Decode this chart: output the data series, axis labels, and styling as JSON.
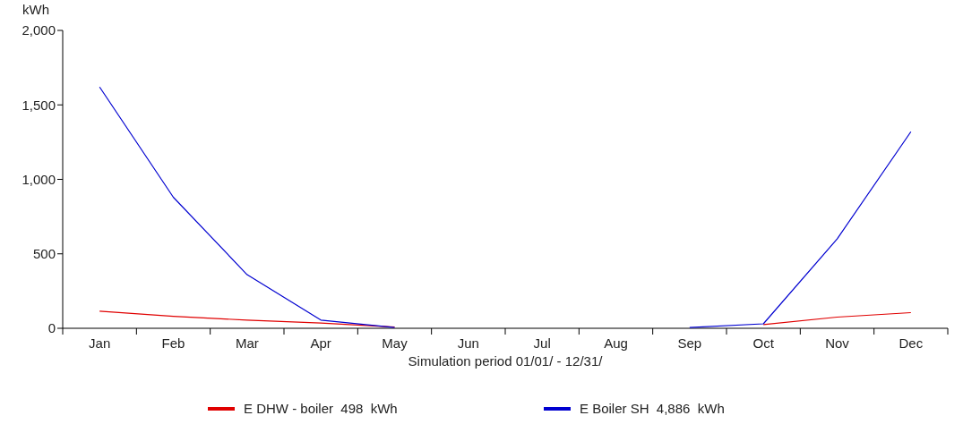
{
  "chart_data": {
    "type": "line",
    "xlabel": "Simulation period 01/01/ - 12/31/",
    "ylabel": "kWh",
    "categories": [
      "Jan",
      "Feb",
      "Mar",
      "Apr",
      "May",
      "Jun",
      "Jul",
      "Aug",
      "Sep",
      "Oct",
      "Nov",
      "Dec"
    ],
    "series": [
      {
        "name": "E DHW - boiler  498  kWh",
        "color": "#e00000",
        "values": [
          115,
          80,
          55,
          35,
          8,
          null,
          null,
          null,
          null,
          25,
          75,
          105
        ]
      },
      {
        "name": "E Boiler SH  4,886  kWh",
        "color": "#0000d0",
        "values": [
          1620,
          880,
          360,
          55,
          5,
          null,
          null,
          null,
          5,
          30,
          600,
          1320
        ]
      }
    ],
    "ylim": [
      0,
      2000
    ],
    "yticks": [
      0,
      {
        "value": 500,
        "label": "500"
      },
      {
        "value": 1000,
        "label": "1,000"
      },
      {
        "value": 1500,
        "label": "1,500"
      },
      {
        "value": 2000,
        "label": "2,000"
      }
    ],
    "grid": false,
    "legend": "bottom",
    "marker": "none",
    "line_style": "solid"
  }
}
